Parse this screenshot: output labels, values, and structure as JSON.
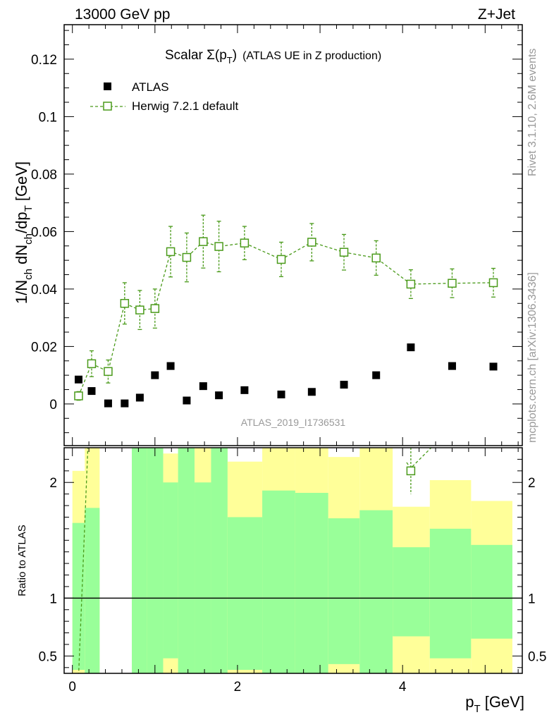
{
  "header": {
    "left": "13000 GeV pp",
    "right": "Z+Jet"
  },
  "side_labels": {
    "rivet": "Rivet 3.1.10,  2.6M events",
    "mcplots": "mcplots.cern.ch [arXiv:1306.3436]"
  },
  "colors": {
    "data": "#000000",
    "mc": "#4a9a1a",
    "band_inner": "#99ff99",
    "band_outer": "#ffff99",
    "watermark": "#999999"
  },
  "chart_data": [
    {
      "type": "scatter",
      "name": "main",
      "title": "Scalar Σ(p_T) (ATLAS UE in Z production)",
      "title_parts": {
        "pre": "Scalar ",
        "sigma": "Σ(p",
        "sub": "T",
        "post": ")",
        "tail": "(ATLAS UE in Z production)"
      },
      "ylabel": "1/N_ch dN_ch/dp_T [GeV]",
      "ylabel_parts": {
        "a": "1/N",
        "a_sub": "ch",
        "b": " dN",
        "b_sub": "ch",
        "c": "/dp",
        "c_sub": "T",
        "d": " [GeV]"
      },
      "watermark": "ATLAS_2019_I1736531",
      "xlim": [
        -0.1,
        5.45
      ],
      "ylim": [
        -0.0145,
        0.132
      ],
      "yticks": [
        0,
        0.02,
        0.04,
        0.06,
        0.08,
        0.1,
        0.12
      ],
      "ytick_labels": [
        "0",
        "0.02",
        "0.04",
        "0.06",
        "0.08",
        "0.1",
        "0.12"
      ],
      "legend": [
        "ATLAS",
        "Herwig 7.2.1 default"
      ],
      "series": [
        {
          "name": "ATLAS",
          "marker": "filled-square",
          "x": [
            0.075,
            0.233,
            0.433,
            0.633,
            0.817,
            1.0,
            1.19,
            1.385,
            1.585,
            1.775,
            2.085,
            2.53,
            2.9,
            3.29,
            3.68,
            4.1,
            4.6,
            5.1
          ],
          "values": [
            0.0085,
            0.0045,
            0.0002,
            0.0002,
            0.0022,
            0.01,
            0.0132,
            0.0012,
            0.0062,
            0.003,
            0.0048,
            0.0033,
            0.0042,
            0.0067,
            0.01,
            0.0197,
            0.0132,
            0.013
          ]
        },
        {
          "name": "Herwig 7.2.1 default",
          "marker": "open-square",
          "line": "dashed",
          "x": [
            0.075,
            0.233,
            0.433,
            0.633,
            0.817,
            1.0,
            1.19,
            1.385,
            1.585,
            1.775,
            2.085,
            2.53,
            2.9,
            3.29,
            3.68,
            4.1,
            4.6,
            5.1
          ],
          "values": [
            0.0028,
            0.014,
            0.0113,
            0.035,
            0.0327,
            0.0332,
            0.053,
            0.051,
            0.0565,
            0.0548,
            0.056,
            0.0503,
            0.0563,
            0.0528,
            0.0508,
            0.0417,
            0.042,
            0.0422
          ],
          "errors": [
            0.0015,
            0.0045,
            0.004,
            0.0072,
            0.0068,
            0.0068,
            0.0088,
            0.0085,
            0.0092,
            0.0088,
            0.0058,
            0.006,
            0.0065,
            0.0062,
            0.006,
            0.005,
            0.005,
            0.005
          ]
        }
      ]
    },
    {
      "type": "area",
      "name": "ratio",
      "ylabel": "Ratio to ATLAS",
      "xlabel": "p_T [GeV]",
      "xlabel_parts": {
        "a": "p",
        "a_sub": "T",
        "b": " [GeV]"
      },
      "xlim": [
        -0.1,
        5.45
      ],
      "ylim": [
        0.35,
        2.3
      ],
      "yticks": [
        0.5,
        1,
        2
      ],
      "ytick_labels": [
        "0.5",
        "1",
        "2"
      ],
      "xticks": [
        0,
        2,
        4
      ],
      "xtick_labels": [
        "0",
        "2",
        "4"
      ],
      "bins": [
        {
          "lo": 0.0,
          "hi": 0.15,
          "inner": [
            0.38,
            1.65
          ],
          "outer": [
            0.32,
            2.1
          ]
        },
        {
          "lo": 0.15,
          "hi": 0.33,
          "inner": [
            0.32,
            1.78
          ],
          "outer": [
            0.32,
            2.4
          ]
        },
        {
          "lo": 0.72,
          "hi": 0.9,
          "inner": [
            0.32,
            2.4
          ],
          "outer": [
            0.32,
            2.4
          ]
        },
        {
          "lo": 0.9,
          "hi": 1.1,
          "inner": [
            0.32,
            2.4
          ],
          "outer": [
            0.32,
            2.4
          ]
        },
        {
          "lo": 1.1,
          "hi": 1.28,
          "inner": [
            0.48,
            2.0
          ],
          "outer": [
            0.32,
            2.25
          ]
        },
        {
          "lo": 1.28,
          "hi": 1.48,
          "inner": [
            0.32,
            2.4
          ],
          "outer": [
            0.32,
            2.4
          ]
        },
        {
          "lo": 1.48,
          "hi": 1.68,
          "inner": [
            0.32,
            2.0
          ],
          "outer": [
            0.32,
            2.4
          ]
        },
        {
          "lo": 1.68,
          "hi": 1.88,
          "inner": [
            0.32,
            2.4
          ],
          "outer": [
            0.32,
            2.4
          ]
        },
        {
          "lo": 1.88,
          "hi": 2.3,
          "inner": [
            0.38,
            1.7
          ],
          "outer": [
            0.32,
            2.18
          ]
        },
        {
          "lo": 2.3,
          "hi": 2.7,
          "inner": [
            0.32,
            1.93
          ],
          "outer": [
            0.32,
            2.4
          ]
        },
        {
          "lo": 2.7,
          "hi": 3.1,
          "inner": [
            0.32,
            1.91
          ],
          "outer": [
            0.32,
            2.4
          ]
        },
        {
          "lo": 3.1,
          "hi": 3.48,
          "inner": [
            0.43,
            1.69
          ],
          "outer": [
            0.32,
            2.22
          ]
        },
        {
          "lo": 3.48,
          "hi": 3.88,
          "inner": [
            0.32,
            1.76
          ],
          "outer": [
            0.32,
            2.32
          ]
        },
        {
          "lo": 3.88,
          "hi": 4.33,
          "inner": [
            0.67,
            1.44
          ],
          "outer": [
            0.32,
            1.79
          ]
        },
        {
          "lo": 4.33,
          "hi": 4.83,
          "inner": [
            0.48,
            1.6
          ],
          "outer": [
            0.32,
            2.02
          ]
        },
        {
          "lo": 4.83,
          "hi": 5.33,
          "inner": [
            0.65,
            1.46
          ],
          "outer": [
            0.32,
            1.84
          ]
        }
      ],
      "ratio_line": {
        "x": [
          0.075,
          0.233,
          4.1,
          4.6
        ],
        "values": [
          0.33,
          3.1,
          2.1,
          2.45
        ]
      },
      "ratio_point": {
        "x": 4.1,
        "value": 2.1,
        "error": 0.2
      }
    }
  ]
}
